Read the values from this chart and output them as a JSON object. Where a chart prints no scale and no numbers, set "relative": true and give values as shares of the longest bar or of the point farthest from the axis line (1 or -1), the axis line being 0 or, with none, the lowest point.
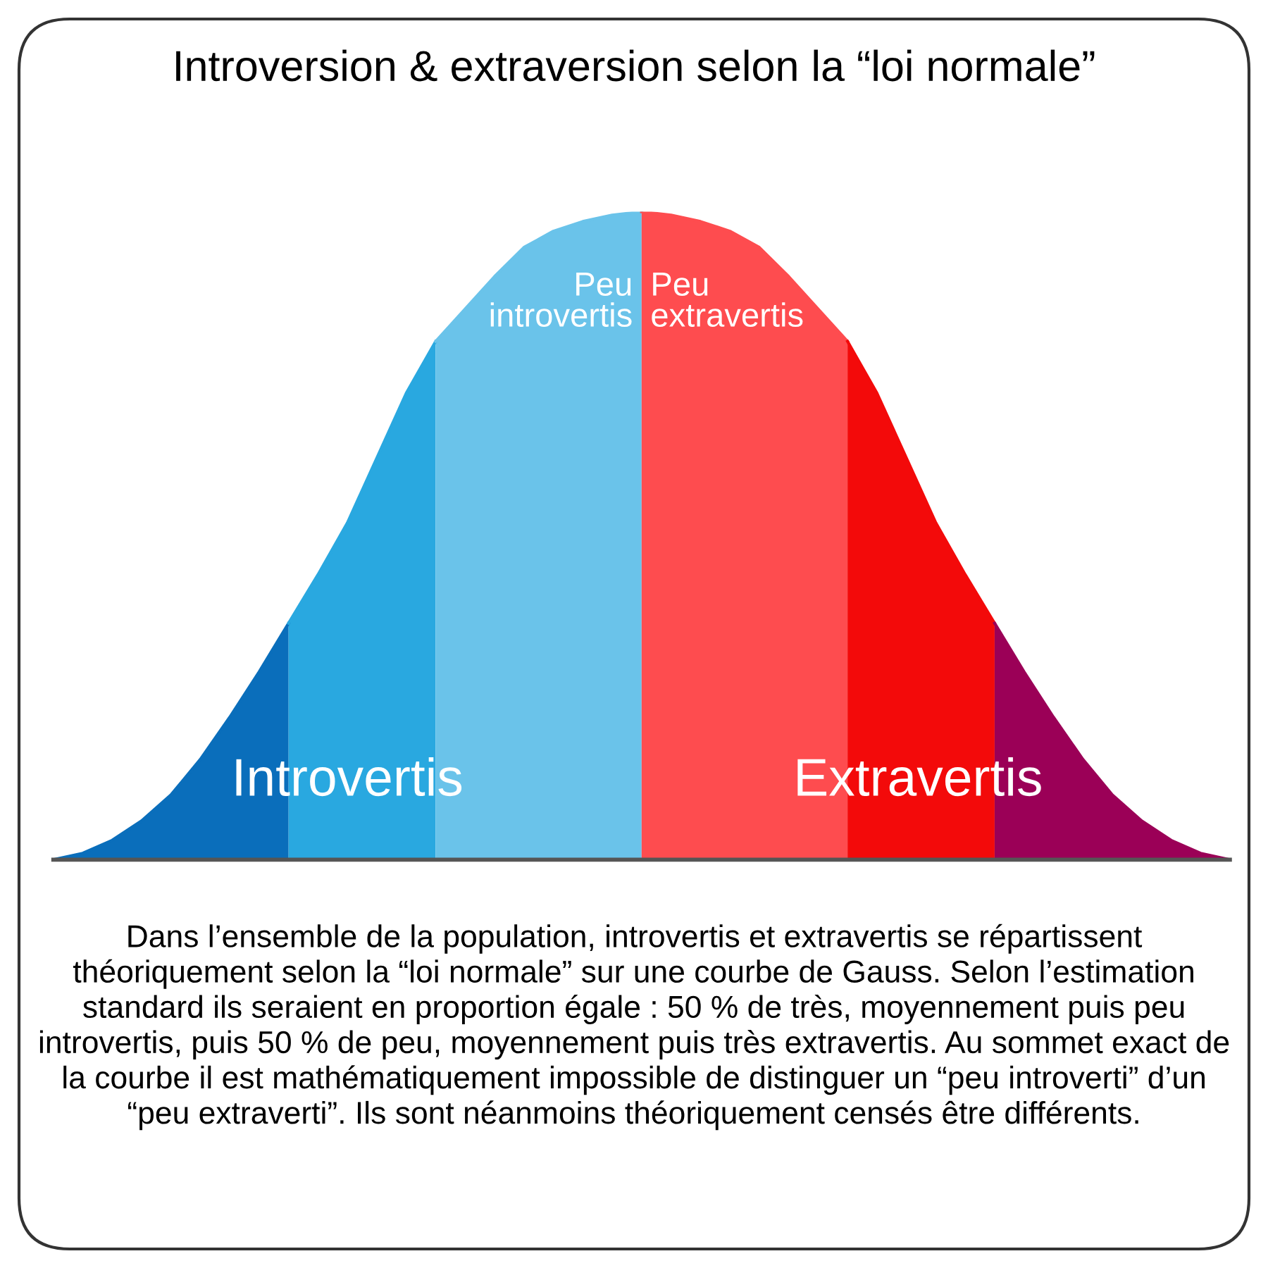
{
  "chart_data": {
    "type": "area",
    "relative": true,
    "title": "Introversion & extraversion selon la “loi normale”",
    "categories": [
      null,
      null,
      null,
      null,
      null,
      null,
      null,
      null,
      null,
      null,
      null,
      null,
      null,
      null,
      null,
      null,
      null,
      null,
      null,
      null,
      null,
      null,
      null,
      null,
      null,
      null,
      null,
      null,
      null,
      null,
      null,
      null,
      null,
      null,
      null,
      null,
      null,
      null,
      null,
      null,
      null
    ],
    "series": [
      {
        "color": "#0a6ebb",
        "values": [
          0.0,
          0.01,
          0.03,
          0.06,
          0.1,
          0.155,
          0.22,
          0.29,
          0.365,
          null,
          null,
          null,
          null,
          null,
          null,
          null,
          null,
          null,
          null,
          null,
          null,
          null,
          null,
          null,
          null,
          null,
          null,
          null,
          null,
          null,
          null,
          null,
          null,
          null,
          null,
          null,
          null,
          null,
          null,
          null,
          null
        ]
      },
      {
        "color": "#29a8e0",
        "values": [
          null,
          null,
          null,
          null,
          null,
          null,
          null,
          null,
          0.365,
          0.44,
          0.52,
          0.62,
          0.72,
          0.8,
          null,
          null,
          null,
          null,
          null,
          null,
          null,
          null,
          null,
          null,
          null,
          null,
          null,
          null,
          null,
          null,
          null,
          null,
          null,
          null,
          null,
          null,
          null,
          null,
          null,
          null,
          null
        ]
      },
      {
        "color": "#6ac3ea",
        "values": [
          null,
          null,
          null,
          null,
          null,
          null,
          null,
          null,
          null,
          null,
          null,
          null,
          null,
          0.8,
          0.85,
          0.9,
          0.945,
          0.97,
          0.985,
          0.995,
          1.0,
          null,
          null,
          null,
          null,
          null,
          null,
          null,
          null,
          null,
          null,
          null,
          null,
          null,
          null,
          null,
          null,
          null,
          null,
          null,
          null
        ]
      },
      {
        "color": "#fe4c4f",
        "values": [
          null,
          null,
          null,
          null,
          null,
          null,
          null,
          null,
          null,
          null,
          null,
          null,
          null,
          null,
          null,
          null,
          null,
          null,
          null,
          null,
          1.0,
          0.995,
          0.985,
          0.97,
          0.945,
          0.9,
          0.85,
          0.8,
          null,
          null,
          null,
          null,
          null,
          null,
          null,
          null,
          null,
          null,
          null,
          null,
          null
        ]
      },
      {
        "color": "#f30a0a",
        "values": [
          null,
          null,
          null,
          null,
          null,
          null,
          null,
          null,
          null,
          null,
          null,
          null,
          null,
          null,
          null,
          null,
          null,
          null,
          null,
          null,
          null,
          null,
          null,
          null,
          null,
          null,
          null,
          0.8,
          0.72,
          0.62,
          0.52,
          0.44,
          0.365,
          null,
          null,
          null,
          null,
          null,
          null,
          null,
          null
        ]
      },
      {
        "color": "#9b0057",
        "values": [
          null,
          null,
          null,
          null,
          null,
          null,
          null,
          null,
          null,
          null,
          null,
          null,
          null,
          null,
          null,
          null,
          null,
          null,
          null,
          null,
          null,
          null,
          null,
          null,
          null,
          null,
          null,
          null,
          null,
          null,
          null,
          null,
          0.365,
          0.29,
          0.22,
          0.155,
          0.1,
          0.06,
          0.03,
          0.01,
          0.0
        ]
      }
    ],
    "annotations": [
      "Peu\nintrovertis",
      "Peu\nextravertis",
      "Introvertis",
      "Extravertis",
      "Dans l’ensemble de la population, introvertis et extravertis se répartissent\nthéoriquement selon la “loi normale” sur une courbe de Gauss. Selon l’estimation\nstandard ils seraient en proportion égale : 50 % de très, moyennement puis peu\nintrovertis, puis 50 % de peu, moyennement puis très extravertis. Au sommet exact de\nla courbe il est mathématiquement impossible de distinguer un “peu introverti” d’un\n“peu extraverti”. Ils sont néanmoins théoriquement censés être différents."
    ]
  }
}
